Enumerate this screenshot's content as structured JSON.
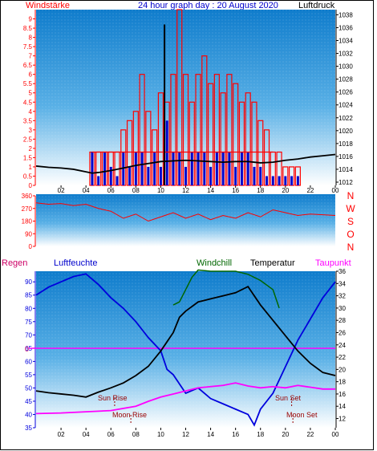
{
  "top_labels": {
    "left": "Windstärke",
    "center": "24 hour graph day : 20 August 2020",
    "right": "Luftdruck"
  },
  "direction_letters": [
    "N",
    "W",
    "S",
    "O",
    "N"
  ],
  "bottom_labels": {
    "regen": "Regen",
    "luftfeuchte": "Luftfeuchte",
    "windchill": "Windchill",
    "temperatur": "Temperatur",
    "taupunkt": "Taupunkt"
  },
  "annotations": {
    "sun_rise": "Sun Rise",
    "sun_set": "Sun Set",
    "moon_rise": "Moon Rise",
    "moon_set": "Moon Set",
    "zero_label": "0"
  },
  "colors": {
    "wind": "#ff0000",
    "pressure": "#000000",
    "gust": "#0000cc",
    "humidity": "#0000dd",
    "temperature": "#000000",
    "windchill": "#006600",
    "dewpoint": "#ff00ff",
    "rain": "#cc0066",
    "background_top": "#1e8fd8",
    "background_bottom": "#ffffff"
  },
  "chart_data": [
    {
      "type": "bar",
      "ylabel_left": "Windstärke",
      "ylabel_right": "Luftdruck",
      "x_ticks": [
        "02",
        "04",
        "06",
        "08",
        "10",
        "12",
        "14",
        "16",
        "18",
        "20",
        "22",
        "00"
      ],
      "left_ticks": [
        "9",
        "8.5",
        "8",
        "7.5",
        "7",
        "6.5",
        "6",
        "5.5",
        "5",
        "4.5",
        "4",
        "3.5",
        "3",
        "2.5",
        "2",
        "1.5",
        "1",
        "0.5",
        "0"
      ],
      "right_ticks": [
        "1038",
        "1036",
        "1034",
        "1032",
        "1030",
        "1028",
        "1026",
        "1024",
        "1022",
        "1020",
        "1018",
        "1016",
        "1014",
        "1012"
      ],
      "ylim_left": [
        0,
        9.5
      ],
      "ylim_right": [
        1011.5,
        1038.8
      ],
      "hours": [
        4.5,
        5.0,
        5.5,
        6.0,
        6.5,
        7.0,
        7.5,
        8.0,
        8.5,
        9.0,
        9.5,
        10.0,
        10.5,
        11.0,
        11.5,
        12.0,
        12.5,
        13.0,
        13.5,
        14.0,
        14.5,
        15.0,
        15.5,
        16.0,
        16.5,
        17.0,
        17.5,
        18.0,
        18.5,
        19.0,
        19.5,
        20.0,
        20.5,
        21.0
      ],
      "series": [
        {
          "name": "Windstärke",
          "values": [
            1.8,
            1.8,
            1.8,
            1.8,
            1.8,
            3.0,
            3.5,
            4.0,
            6.0,
            4.0,
            3.0,
            5.0,
            4.5,
            6.0,
            9.5,
            6.0,
            4.5,
            6.0,
            7.0,
            5.5,
            6.0,
            5.0,
            6.0,
            5.5,
            4.5,
            5.0,
            4.5,
            3.5,
            3.0,
            1.8,
            1.8,
            1.0,
            1.0,
            1.0
          ]
        },
        {
          "name": "Böen",
          "values": [
            1.8,
            0.5,
            1.8,
            1.0,
            0.5,
            1.8,
            1.0,
            1.8,
            1.8,
            1.0,
            1.8,
            1.0,
            3.5,
            1.8,
            1.8,
            1.0,
            1.8,
            1.8,
            1.8,
            1.0,
            1.8,
            1.8,
            1.8,
            1.0,
            1.8,
            1.8,
            1.0,
            1.0,
            0.5,
            0.5,
            0.5,
            0.5,
            0.5,
            0.5
          ]
        },
        {
          "name": "Luftdruck",
          "hours": [
            0,
            1,
            2,
            3,
            4,
            4.5,
            5,
            6,
            7,
            8,
            9,
            10,
            11,
            12,
            13,
            14,
            15,
            16,
            17,
            18,
            19,
            20,
            21,
            22,
            23,
            24
          ],
          "values": [
            1014.5,
            1014.3,
            1014.2,
            1014.0,
            1013.6,
            1013.4,
            1013.5,
            1013.8,
            1014.2,
            1014.6,
            1014.9,
            1015.2,
            1015.3,
            1015.4,
            1015.3,
            1015.2,
            1015.1,
            1015.2,
            1015.2,
            1015.0,
            1015.1,
            1015.4,
            1015.6,
            1015.9,
            1016.1,
            1016.3
          ]
        }
      ],
      "spike_hour": 10.3,
      "spike_value": 8.7
    },
    {
      "type": "line",
      "ylabel_right_letters": "N W S O N",
      "left_ticks": [
        "360",
        "270",
        "180",
        "90",
        "0"
      ],
      "ylim": [
        0,
        360
      ],
      "series": [
        {
          "name": "Windrichtung",
          "hours": [
            0,
            1,
            2,
            3,
            4,
            5,
            6,
            7,
            8,
            9,
            10,
            11,
            12,
            13,
            14,
            15,
            16,
            17,
            18,
            19,
            20,
            21,
            22,
            23,
            24
          ],
          "values": [
            310,
            300,
            305,
            290,
            300,
            270,
            250,
            200,
            230,
            180,
            210,
            240,
            200,
            230,
            190,
            220,
            200,
            240,
            210,
            260,
            240,
            220,
            230,
            225,
            220
          ]
        }
      ]
    },
    {
      "type": "line",
      "left_ticks": [
        "90",
        "85",
        "80",
        "75",
        "70",
        "65",
        "60",
        "55",
        "50",
        "45",
        "40",
        "35"
      ],
      "right_ticks": [
        "36",
        "34",
        "32",
        "30",
        "28",
        "26",
        "24",
        "22",
        "20",
        "18",
        "16",
        "14",
        "12"
      ],
      "ylim_left": [
        35,
        94
      ],
      "ylim_right": [
        10.5,
        36
      ],
      "series": [
        {
          "name": "Luftfeuchte",
          "hours": [
            0,
            1,
            2,
            3,
            4,
            5,
            6,
            7,
            8,
            9,
            10,
            10.5,
            11,
            12,
            13,
            14,
            15,
            16,
            17,
            17.5,
            18,
            19,
            20,
            21,
            22,
            23,
            24
          ],
          "values": [
            85,
            88,
            90,
            92,
            93,
            89,
            84,
            80,
            75,
            69,
            64,
            57,
            55,
            48,
            50,
            46,
            44,
            42,
            40,
            36,
            42,
            48,
            58,
            68,
            76,
            84,
            90
          ]
        },
        {
          "name": "Temperatur",
          "hours": [
            0,
            1,
            2,
            3,
            4,
            5,
            6,
            7,
            8,
            9,
            10,
            10.5,
            11,
            11.5,
            12,
            13,
            14,
            15,
            16,
            17,
            18,
            19,
            20,
            21,
            22,
            23,
            24
          ],
          "values": [
            16.5,
            16.2,
            16.0,
            15.8,
            15.5,
            16.3,
            17.0,
            17.8,
            19.0,
            20.5,
            23.0,
            24.5,
            26.0,
            28.5,
            29.5,
            31.0,
            31.5,
            32.0,
            32.5,
            33.5,
            30.5,
            28.0,
            25.5,
            23.0,
            21.0,
            19.5,
            19.0
          ]
        },
        {
          "name": "Windchill",
          "hours": [
            11,
            11.5,
            12,
            12.5,
            13,
            14,
            15,
            16,
            17,
            18,
            19,
            19.5
          ],
          "values": [
            30.5,
            31.0,
            33.0,
            35.0,
            36.2,
            36.0,
            36.0,
            36.0,
            35.5,
            34.5,
            33.0,
            30.0
          ]
        },
        {
          "name": "Taupunkt",
          "hours": [
            0,
            2,
            4,
            6,
            8,
            9,
            10,
            11,
            12,
            13,
            14,
            15,
            16,
            17,
            18,
            19,
            20,
            21,
            22,
            23,
            24
          ],
          "values": [
            12.8,
            12.9,
            13.1,
            13.3,
            14.0,
            14.8,
            15.5,
            16.0,
            16.5,
            17.0,
            17.2,
            17.4,
            17.8,
            17.3,
            17.0,
            17.2,
            17.0,
            17.4,
            17.1,
            16.8,
            16.8
          ]
        }
      ],
      "rain_line_value": 0,
      "sun_rise_hour": 6.3,
      "sun_set_hour": 20.5,
      "moon_rise_hour": 7.6,
      "moon_set_hour": 20.6
    }
  ]
}
